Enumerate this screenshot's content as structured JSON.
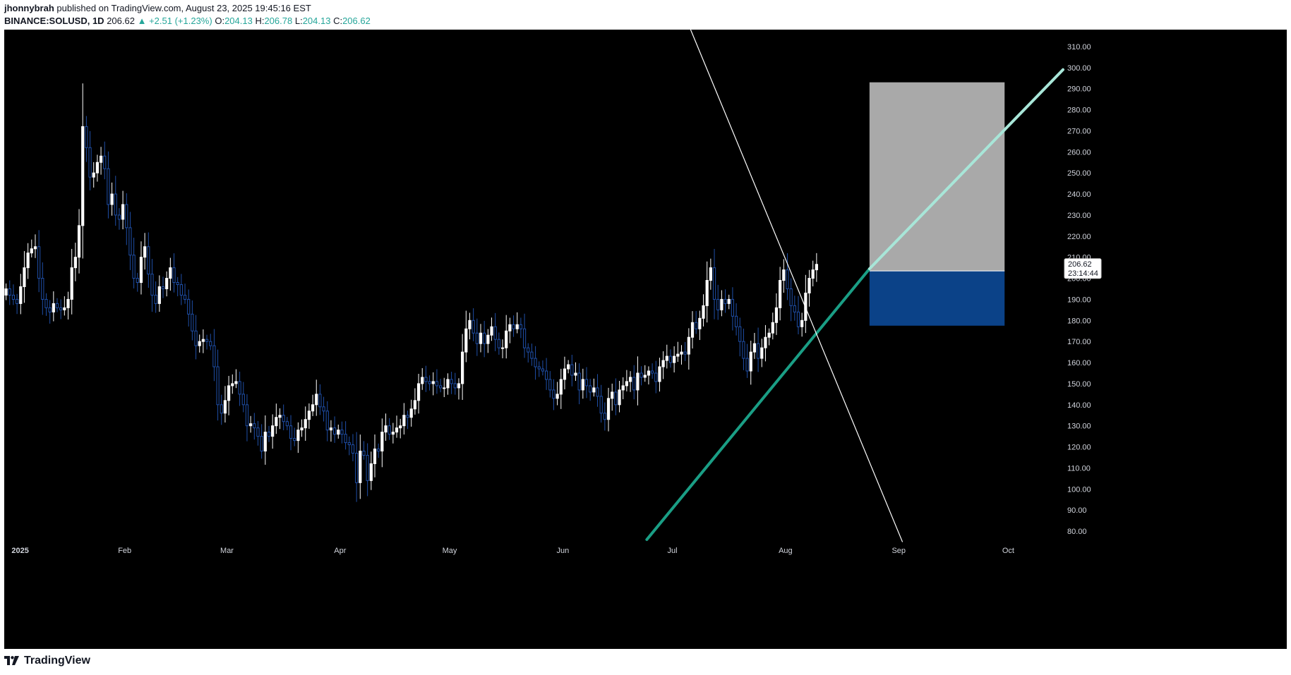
{
  "header": {
    "author": "jhonnybrah",
    "published": "published on TradingView.com, August 23, 2025 19:45:16 EST",
    "symbol": "BINANCE:SOLUSD, 1D",
    "last": "206.62",
    "change": "▲ +2.51 (+1.23%)",
    "o_label": "O:",
    "o_val": "204.13",
    "h_label": "H:",
    "h_val": "206.78",
    "l_label": "L:",
    "l_val": "204.13",
    "c_label": "C:",
    "c_val": "206.62"
  },
  "footer": {
    "brand": "TradingView",
    "logo_icon": "tradingview-logo-icon"
  },
  "price_tag": {
    "price": "206.62",
    "countdown": "23:14:44"
  },
  "colors": {
    "background": "#000000",
    "up_candle": "#ffffff",
    "down_candle": "#1f4fa8",
    "trendline_support": "#1a9e85",
    "trendline_projection": "#a8e6d8",
    "target_zone": "#a9a9a9",
    "stop_zone": "#0b4288"
  },
  "chart_data": {
    "type": "candlestick",
    "title": "",
    "xlabel": "",
    "ylabel": "",
    "ylim": [
      75,
      318
    ],
    "y_ticks": [
      80,
      90,
      100,
      110,
      120,
      130,
      140,
      150,
      160,
      170,
      180,
      190,
      200,
      210,
      220,
      230,
      240,
      250,
      260,
      270,
      280,
      290,
      300,
      310
    ],
    "y_tick_labels": [
      "80.00",
      "90.00",
      "100.00",
      "110.00",
      "120.00",
      "130.00",
      "140.00",
      "150.00",
      "160.00",
      "170.00",
      "180.00",
      "190.00",
      "200.00",
      "210.00",
      "220.00",
      "230.00",
      "240.00",
      "250.00",
      "260.00",
      "270.00",
      "280.00",
      "290.00",
      "300.00",
      "310.00"
    ],
    "x_start": "2024-12-30",
    "x_end": "2025-10-16",
    "x_ticks": [
      {
        "date": "2025-01-01",
        "label": "2025"
      },
      {
        "date": "2025-02-01",
        "label": "Feb"
      },
      {
        "date": "2025-03-01",
        "label": "Mar"
      },
      {
        "date": "2025-04-01",
        "label": "Apr"
      },
      {
        "date": "2025-05-01",
        "label": "May"
      },
      {
        "date": "2025-06-01",
        "label": "Jun"
      },
      {
        "date": "2025-07-01",
        "label": "Jul"
      },
      {
        "date": "2025-08-01",
        "label": "Aug"
      },
      {
        "date": "2025-09-01",
        "label": "Sep"
      },
      {
        "date": "2025-10-01",
        "label": "Oct"
      }
    ],
    "first_date": "2024-12-30",
    "closes": [
      195,
      192,
      190,
      188,
      196,
      205,
      212,
      214,
      215,
      200,
      190,
      186,
      184,
      188,
      186,
      185,
      186,
      190,
      205,
      210,
      225,
      272,
      262,
      248,
      250,
      255,
      258,
      252,
      235,
      240,
      230,
      228,
      235,
      224,
      211,
      200,
      198,
      210,
      215,
      202,
      192,
      188,
      196,
      195,
      200,
      205,
      198,
      197,
      192,
      190,
      183,
      175,
      168,
      170,
      171,
      170,
      168,
      158,
      140,
      136,
      142,
      149,
      150,
      151,
      145,
      140,
      130,
      131,
      129,
      125,
      118,
      127,
      125,
      130,
      134,
      135,
      132,
      130,
      124,
      123,
      128,
      129,
      133,
      137,
      140,
      145,
      139,
      137,
      128,
      129,
      126,
      128,
      126,
      122,
      121,
      117,
      103,
      118,
      116,
      104,
      112,
      119,
      118,
      127,
      130,
      126,
      127,
      129,
      130,
      135,
      134,
      138,
      142,
      150,
      153,
      151,
      150,
      151,
      149,
      148,
      148,
      152,
      150,
      148,
      150,
      165,
      176,
      180,
      174,
      169,
      174,
      169,
      173,
      177,
      171,
      167,
      167,
      175,
      178,
      176,
      178,
      176,
      167,
      165,
      162,
      158,
      157,
      156,
      152,
      147,
      143,
      145,
      152,
      157,
      159,
      154,
      155,
      147,
      152,
      149,
      146,
      148,
      144,
      136,
      133,
      143,
      146,
      140,
      147,
      149,
      151,
      153,
      147,
      155,
      153,
      154,
      156,
      155,
      151,
      158,
      161,
      163,
      160,
      163,
      164,
      165,
      164,
      172,
      179,
      176,
      181,
      187,
      199,
      205,
      190,
      185,
      190,
      188,
      190,
      182,
      177,
      170,
      162,
      156,
      165,
      169,
      162,
      167,
      172,
      174,
      179,
      186,
      199,
      204,
      195,
      187,
      184,
      177,
      180,
      193,
      200,
      204,
      206.62
    ],
    "zones": {
      "target": {
        "from": 203.5,
        "to": 293,
        "start_date": "2025-08-24",
        "end_date": "2025-09-30"
      },
      "stop": {
        "from": 177.5,
        "to": 203.5,
        "start_date": "2025-08-24",
        "end_date": "2025-09-30"
      }
    },
    "lines": [
      {
        "name": "support",
        "from": {
          "date": "2025-06-24",
          "price": 76
        },
        "to": {
          "date": "2025-08-24",
          "price": 204.5
        }
      },
      {
        "name": "projection",
        "from": {
          "date": "2025-08-24",
          "price": 204.5
        },
        "to": {
          "date": "2025-10-16",
          "price": 299
        }
      },
      {
        "name": "descending",
        "from": {
          "date": "2025-07-06",
          "price": 318
        },
        "to": {
          "date": "2025-09-02",
          "price": 75
        }
      }
    ],
    "last_price": 206.62
  }
}
